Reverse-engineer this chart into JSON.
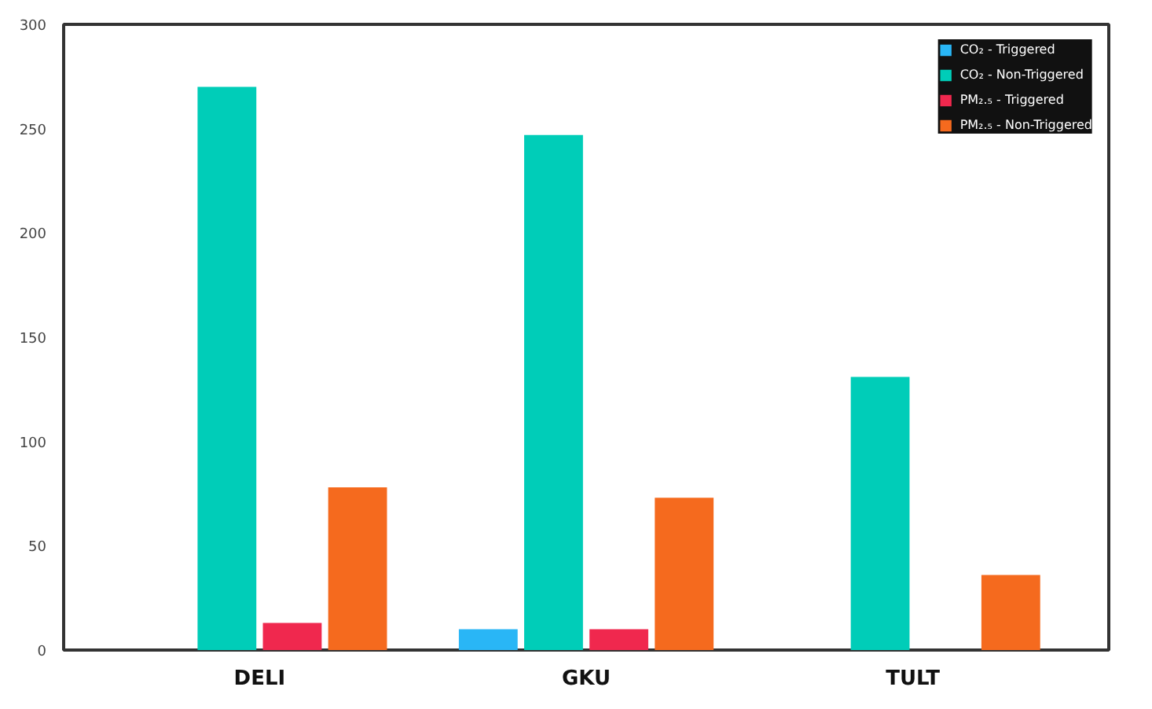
{
  "chart_data": {
    "type": "bar",
    "categories": [
      "DELI",
      "GKU",
      "TULT"
    ],
    "series": [
      {
        "name": "CO₂ - Triggered",
        "color": "#29b6f6",
        "values": [
          0,
          10,
          0
        ]
      },
      {
        "name": "CO₂ - Non-Triggered",
        "color": "#00cdb8",
        "values": [
          270,
          247,
          131
        ]
      },
      {
        "name": "PM₂.₅ - Triggered",
        "color": "#f0284e",
        "values": [
          13,
          10,
          0
        ]
      },
      {
        "name": "PM₂.₅ - Non-Triggered",
        "color": "#f56a1e",
        "values": [
          78,
          73,
          36
        ]
      }
    ],
    "ylim": [
      0,
      300
    ],
    "yticks": [
      0,
      50,
      100,
      150,
      200,
      250,
      300
    ],
    "grid": false,
    "legend": "top right"
  }
}
